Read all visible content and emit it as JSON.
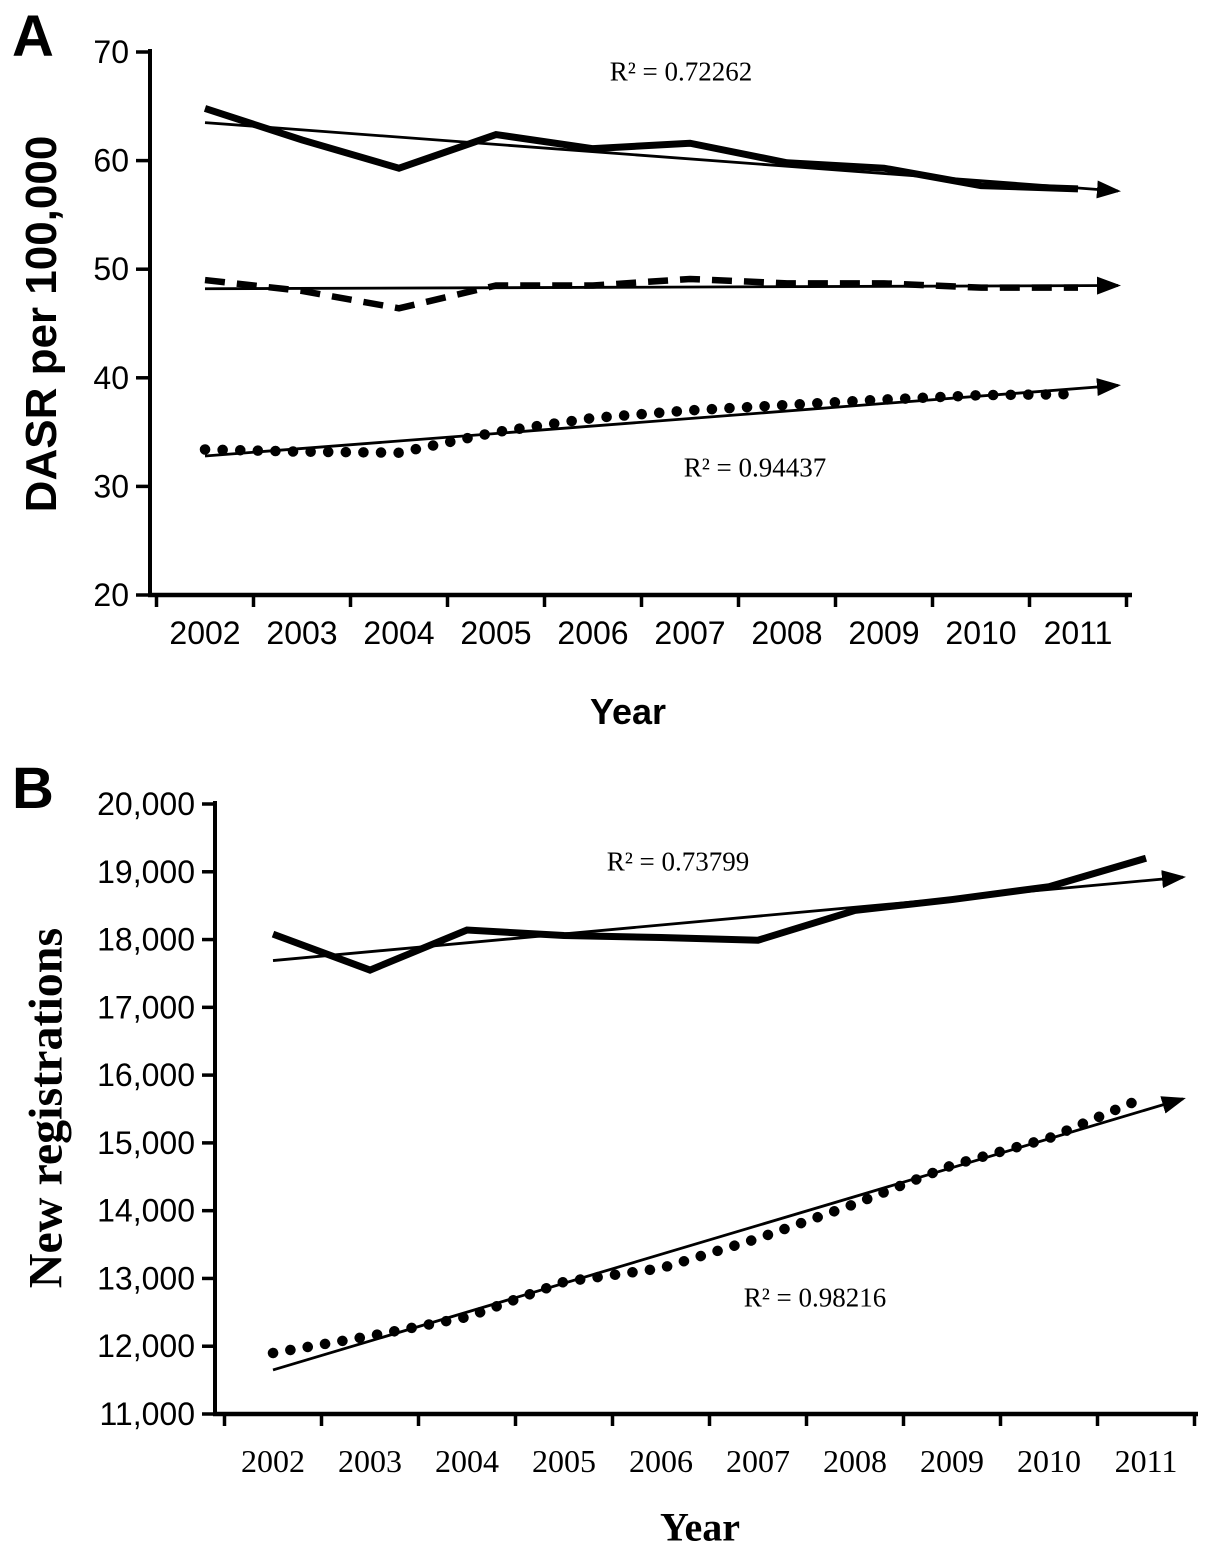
{
  "figure": {
    "background": "#ffffff",
    "line_color": "#000000"
  },
  "chart_data": [
    {
      "panel": "A",
      "type": "line",
      "title": "",
      "xlabel": "Year",
      "ylabel": "DASR per 100,000",
      "x_categories": [
        "2002",
        "2003",
        "2004",
        "2005",
        "2006",
        "2007",
        "2008",
        "2009",
        "2010",
        "2011"
      ],
      "ylim": [
        20,
        70
      ],
      "ytick_labels": [
        "20",
        "30",
        "40",
        "50",
        "60",
        "70"
      ],
      "grid": false,
      "legend": "none",
      "series": [
        {
          "name": "thick-solid-line",
          "style": "solid",
          "values": [
            64.8,
            61.9,
            59.3,
            62.4,
            61.1,
            61.6,
            59.8,
            59.3,
            57.7,
            57.4
          ]
        },
        {
          "name": "dashed-line",
          "style": "dashed",
          "values": [
            49.0,
            48.0,
            46.4,
            48.5,
            48.5,
            49.1,
            48.7,
            48.7,
            48.3,
            48.3
          ]
        },
        {
          "name": "dotted-line",
          "style": "dotted",
          "values": [
            33.4,
            33.2,
            33.1,
            35.0,
            36.3,
            37.0,
            37.5,
            38.0,
            38.4,
            38.5
          ]
        }
      ],
      "trendlines": [
        {
          "for_series": "thick-solid-line",
          "start_value": 63.5,
          "end_value": 57.2,
          "r2": 0.72262,
          "r2_label": "R² = 0.72262",
          "arrow": true
        },
        {
          "for_series": "dashed-line",
          "start_value": 48.2,
          "end_value": 48.5,
          "r2": null,
          "r2_label": "",
          "arrow": true
        },
        {
          "for_series": "dotted-line",
          "start_value": 32.8,
          "end_value": 39.3,
          "r2": 0.94437,
          "r2_label": "R² = 0.94437",
          "arrow": true
        }
      ]
    },
    {
      "panel": "B",
      "type": "line",
      "title": "",
      "xlabel": "Year",
      "ylabel": "New registrations",
      "x_categories": [
        "2002",
        "2003",
        "2004",
        "2005",
        "2006",
        "2007",
        "2008",
        "2009",
        "2010",
        "2011"
      ],
      "ylim": [
        11000,
        20000
      ],
      "ytick_labels": [
        "11,000",
        "12,000",
        "13,000",
        "14,000",
        "15,000",
        "16,000",
        "17,000",
        "18,000",
        "19,000",
        "20,000"
      ],
      "grid": false,
      "legend": "none",
      "series": [
        {
          "name": "thick-solid-line",
          "style": "solid",
          "values": [
            18080,
            17550,
            18140,
            18060,
            18030,
            17990,
            18430,
            18590,
            18780,
            19200
          ]
        },
        {
          "name": "dotted-line",
          "style": "dotted",
          "values": [
            11900,
            12150,
            12430,
            12950,
            13150,
            13590,
            14100,
            14670,
            15070,
            15680
          ]
        }
      ],
      "trendlines": [
        {
          "for_series": "thick-solid-line",
          "start_value": 17690,
          "end_value": 18920,
          "r2": 0.73799,
          "r2_label": "R² = 0.73799",
          "arrow": true
        },
        {
          "for_series": "dotted-line",
          "start_value": 11650,
          "end_value": 15650,
          "r2": 0.98216,
          "r2_label": "R² = 0.98216",
          "arrow": true
        }
      ]
    }
  ]
}
